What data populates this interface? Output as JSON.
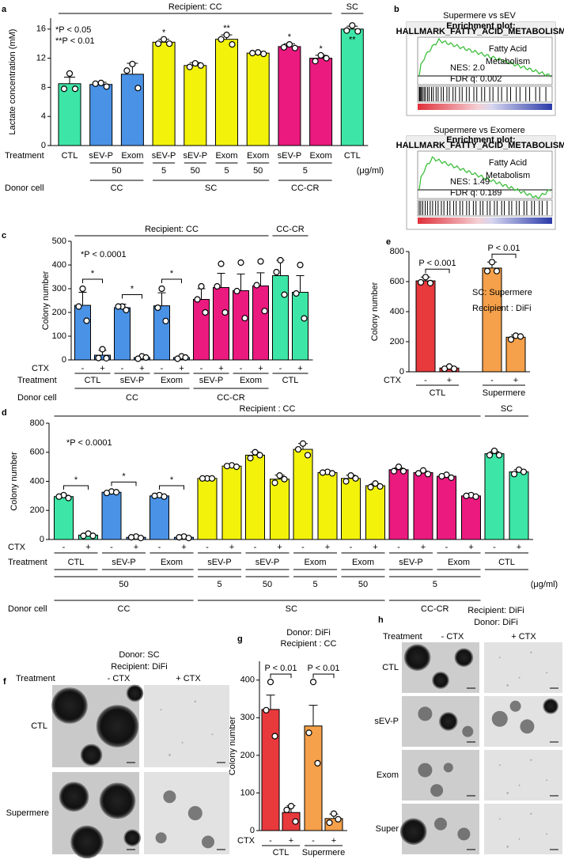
{
  "chart_data": [
    {
      "type": "bar",
      "panel_label": "a",
      "y_label": "Lactate concentration (mM)",
      "ylim": [
        0,
        17.5
      ],
      "yticks": [
        0,
        4,
        8,
        12,
        16
      ],
      "headers": [
        "Recipient: CC",
        "SC"
      ],
      "notes": [
        "*P < 0.05",
        "**P < 0.01"
      ],
      "row_labels": [
        "Treatment",
        "Donor cell"
      ],
      "categories": [
        "CTL",
        "sEV-P",
        "Exom",
        "sEV-P",
        "sEV-P",
        "Exom",
        "Exom",
        "sEV-P",
        "Exom",
        "CTL"
      ],
      "concentrations": [
        "50",
        "5",
        "50",
        "5",
        "50",
        "5"
      ],
      "concentration_unit": "(μg/ml)",
      "donors": [
        "CC",
        "SC",
        "CC-CR"
      ],
      "colors": [
        "#3de6a6",
        "#4a92e6",
        "#4a92e6",
        "#f2f20a",
        "#f2f20a",
        "#f2f20a",
        "#f2f20a",
        "#ea1a7f",
        "#ea1a7f",
        "#3de6a6"
      ],
      "values": [
        8.5,
        8.4,
        9.8,
        14.2,
        11.0,
        14.6,
        12.7,
        13.6,
        12.0,
        16.0
      ],
      "errors": [
        0.9,
        0.3,
        1.5,
        0.4,
        0.4,
        0.6,
        0.2,
        0.4,
        0.4,
        0.4
      ],
      "points": [
        [
          9.9,
          7.8,
          7.8
        ],
        [
          8.6,
          8.5,
          8.1
        ],
        [
          11.2,
          10.3,
          7.9
        ],
        [
          14.6,
          14.0,
          14.0
        ],
        [
          11.3,
          10.8,
          11.0
        ],
        [
          15.2,
          14.6,
          13.9
        ],
        [
          12.8,
          12.7,
          12.6
        ],
        [
          13.9,
          13.5,
          13.4
        ],
        [
          12.4,
          11.6,
          12.0
        ],
        [
          16.5,
          15.8,
          15.7
        ]
      ],
      "significance": [
        null,
        null,
        null,
        "*",
        null,
        "**",
        null,
        "*",
        "*",
        "**"
      ]
    },
    {
      "type": "bar",
      "panel_label": "c",
      "y_label": "Colony number",
      "ylim": [
        0,
        500
      ],
      "yticks": [
        0,
        100,
        200,
        300,
        400,
        500
      ],
      "headers": [
        "Recipient: CC",
        "CC-CR"
      ],
      "notes": [
        "*P < 0.0001"
      ],
      "row_labels": [
        "CTX",
        "Treatment",
        "Donor cell"
      ],
      "categories": [
        "-",
        "+",
        "-",
        "+",
        "-",
        "+",
        "-",
        "+",
        "-",
        "+",
        "-",
        "+"
      ],
      "treatments": [
        "CTL",
        "sEV-P",
        "Exom",
        "sEV-P",
        "Exom",
        "CTL"
      ],
      "donors": [
        "CC",
        "CC-CR"
      ],
      "colors": [
        "#4a92e6",
        "#4a92e6",
        "#4a92e6",
        "#4a92e6",
        "#4a92e6",
        "#4a92e6",
        "#ea1a7f",
        "#ea1a7f",
        "#ea1a7f",
        "#ea1a7f",
        "#3de6a6",
        "#3de6a6"
      ],
      "values": [
        230,
        20,
        220,
        10,
        228,
        10,
        255,
        305,
        292,
        312,
        355,
        285
      ],
      "errors": [
        55,
        20,
        15,
        5,
        55,
        5,
        45,
        60,
        70,
        55,
        65,
        70
      ],
      "points": [
        [
          300,
          225,
          165
        ],
        [
          45,
          8,
          7
        ],
        [
          225,
          225,
          210
        ],
        [
          15,
          5,
          10
        ],
        [
          300,
          220,
          164
        ],
        [
          15,
          5,
          10
        ],
        [
          310,
          255,
          200
        ],
        [
          405,
          310,
          200
        ],
        [
          410,
          290,
          176
        ],
        [
          415,
          315,
          206
        ],
        [
          420,
          370,
          275
        ],
        [
          400,
          280,
          175
        ]
      ],
      "pair_significance": [
        "*",
        "*",
        "*"
      ]
    },
    {
      "type": "bar",
      "panel_label": "d",
      "y_label": "Colony number",
      "ylim": [
        0,
        800
      ],
      "yticks": [
        0,
        200,
        400,
        600,
        800
      ],
      "headers": [
        "Recipient : CC",
        "SC"
      ],
      "notes": [
        "*P < 0.0001"
      ],
      "row_labels": [
        "CTX",
        "Treatment",
        "Donor cell"
      ],
      "categories": [
        "-",
        "+",
        "-",
        "+",
        "-",
        "+",
        "-",
        "+",
        "-",
        "+",
        "-",
        "+",
        "-",
        "+",
        "-",
        "+",
        "-",
        "+",
        "-",
        "+"
      ],
      "treatments": [
        "CTL",
        "sEV-P",
        "Exom",
        "sEV-P",
        "sEV-P",
        "Exom",
        "Exom",
        "sEV-P",
        "Exom",
        "CTL"
      ],
      "concentrations": [
        "50",
        "5",
        "50",
        "5",
        "50",
        "5"
      ],
      "concentration_unit": "(μg/ml)",
      "donors": [
        "CC",
        "SC",
        "CC-CR"
      ],
      "colors": [
        "#3de6a6",
        "#3de6a6",
        "#4a92e6",
        "#4a92e6",
        "#4a92e6",
        "#4a92e6",
        "#f2f20a",
        "#f2f20a",
        "#f2f20a",
        "#f2f20a",
        "#f2f20a",
        "#f2f20a",
        "#f2f20a",
        "#f2f20a",
        "#ea1a7f",
        "#ea1a7f",
        "#ea1a7f",
        "#ea1a7f",
        "#3de6a6",
        "#3de6a6"
      ],
      "values": [
        295,
        30,
        325,
        15,
        300,
        15,
        420,
        505,
        580,
        415,
        620,
        460,
        420,
        370,
        480,
        460,
        435,
        300,
        590,
        465
      ],
      "errors": [
        8,
        5,
        5,
        3,
        3,
        3,
        3,
        6,
        22,
        28,
        40,
        6,
        22,
        15,
        12,
        10,
        8,
        5,
        15,
        15
      ],
      "points": [
        [
          305,
          295,
          285
        ],
        [
          40,
          25,
          25
        ],
        [
          330,
          320,
          325
        ],
        [
          20,
          15,
          10
        ],
        [
          305,
          300,
          295
        ],
        [
          20,
          15,
          10
        ],
        [
          420,
          420,
          420
        ],
        [
          510,
          505,
          500
        ],
        [
          600,
          560,
          580
        ],
        [
          440,
          390,
          415
        ],
        [
          660,
          620,
          580
        ],
        [
          465,
          460,
          455
        ],
        [
          440,
          400,
          420
        ],
        [
          385,
          360,
          365
        ],
        [
          500,
          470,
          470
        ],
        [
          475,
          455,
          450
        ],
        [
          445,
          435,
          425
        ],
        [
          305,
          300,
          295
        ],
        [
          610,
          580,
          580
        ],
        [
          480,
          450,
          465
        ]
      ],
      "pair_significance": [
        "*",
        "*",
        "*"
      ]
    },
    {
      "type": "bar",
      "panel_label": "e",
      "y_label": "Colony number",
      "ylim": [
        0,
        800
      ],
      "yticks": [
        0,
        200,
        400,
        600,
        800
      ],
      "notes": [
        "SC: Supermere",
        "Recipient : DiFi"
      ],
      "row_labels": [
        "CTX"
      ],
      "categories": [
        "-",
        "+",
        "-",
        "+"
      ],
      "treatments": [
        "CTL",
        "Supermere"
      ],
      "colors": [
        "#e8393d",
        "#e8393d",
        "#f5a04a",
        "#f5a04a"
      ],
      "values": [
        605,
        25,
        690,
        230
      ],
      "errors": [
        25,
        8,
        40,
        15
      ],
      "points": [
        [
          630,
          595,
          590
        ],
        [
          35,
          20,
          20
        ],
        [
          730,
          670,
          670
        ],
        [
          240,
          215,
          235
        ]
      ],
      "pair_significance": [
        "P < 0.001",
        "P < 0.01"
      ]
    },
    {
      "type": "bar",
      "panel_label": "g",
      "y_label": "Colony number",
      "ylim": [
        0,
        450
      ],
      "yticks": [
        0,
        100,
        200,
        300,
        400
      ],
      "notes": [
        "Donor: DiFi",
        "Recipient : CC"
      ],
      "row_labels": [
        "CTX"
      ],
      "categories": [
        "-",
        "+",
        "-",
        "+"
      ],
      "treatments": [
        "CTL",
        "Supermere"
      ],
      "colors": [
        "#e8393d",
        "#e8393d",
        "#f5a04a",
        "#f5a04a"
      ],
      "values": [
        322,
        48,
        278,
        32
      ],
      "errors": [
        38,
        18,
        55,
        12
      ],
      "points": [
        [
          395,
          320,
          251
        ],
        [
          65,
          55,
          24
        ],
        [
          395,
          260,
          179
        ],
        [
          45,
          21,
          30
        ]
      ],
      "pair_significance": [
        "P < 0.01",
        "P < 0.01"
      ]
    }
  ],
  "gsea": {
    "panel_label": "b",
    "plots": [
      {
        "title": "Supermere vs sEV",
        "plot_title": "Enrichment plot:",
        "gene_set": "HALLMARK_FATTY_ACID_METABOLISM",
        "term": [
          "Fatty Acid",
          "Metabolism"
        ],
        "nes": "NES: 2.0",
        "fdr": "FDR q: 0.002"
      },
      {
        "title": "Supermere vs Exomere",
        "plot_title": "Enrichment plot:",
        "gene_set": "HALLMARK_FATTY_ACID_METABOLISM",
        "term": [
          "Fatty Acid",
          "Metabolism"
        ],
        "nes": "NES: 1.49",
        "fdr": "FDR q: 0.189"
      }
    ]
  },
  "micrographs_f": {
    "panel_label": "f",
    "header": [
      "Donor: SC",
      "Recipient: DiFi"
    ],
    "row_label_title": "Treatment",
    "columns": [
      "- CTX",
      "+ CTX"
    ],
    "rows": [
      "CTL",
      "Supermere"
    ]
  },
  "micrographs_h": {
    "panel_label": "h",
    "header": [
      "Recipient: DiFi",
      "Donor: DiFi"
    ],
    "row_label_title": "Treatment",
    "columns": [
      "- CTX",
      "+ CTX"
    ],
    "rows": [
      "CTL",
      "sEV-P",
      "Exom",
      "Super"
    ]
  }
}
